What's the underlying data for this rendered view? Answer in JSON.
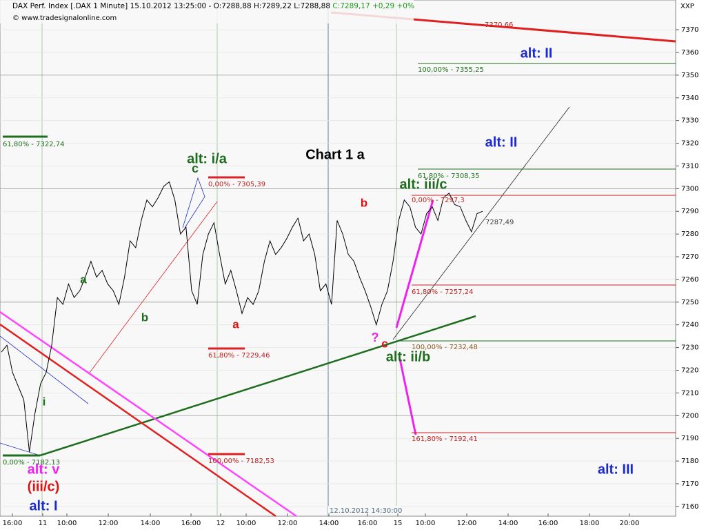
{
  "header": {
    "text": "DAX Perf. Index [.DAX  1 Minute] 15.10.2012 13:25:00 - O:7288,88 H:7289,22 L:7288,88",
    "change": "C:7289,17 +0,29 +0%",
    "source": "© www.tradesignalonline.com"
  },
  "chart_data": {
    "type": "line",
    "unit": "XXP",
    "ylim": [
      7155.7,
      7383.1
    ],
    "yticks": [
      7160,
      7170,
      7180,
      7190,
      7200,
      7210,
      7220,
      7230,
      7240,
      7250,
      7260,
      7270,
      7280,
      7290,
      7300,
      7310,
      7320,
      7330,
      7340,
      7350,
      7360,
      7370
    ],
    "grid": true,
    "x_labels": [
      "16:00",
      "11",
      "10:00",
      "12:00",
      "14:00",
      "16:00",
      "12",
      "10:00",
      "12:00",
      "14:00",
      "16:00",
      "15",
      "10:00",
      "12:00",
      "14:00",
      "16:00",
      "18:00",
      "20:00"
    ],
    "cursor_label": "12.10.2012 14:30:00",
    "series": [
      {
        "color": "#000000",
        "values": [
          7228,
          7231,
          7219,
          7213,
          7207,
          7184,
          7201,
          7214,
          7219,
          7231,
          7252,
          7249,
          7258,
          7252,
          7255,
          7261,
          7268,
          7261,
          7264,
          7258,
          7255,
          7249,
          7261,
          7277,
          7274,
          7286,
          7295,
          7292,
          7296,
          7301,
          7303,
          7295,
          7280,
          7283,
          7255,
          7249,
          7271,
          7280,
          7285,
          7271,
          7258,
          7264,
          7255,
          7245,
          7252,
          7249,
          7255,
          7268,
          7277,
          7271,
          7274,
          7278,
          7283,
          7287,
          7277,
          7280,
          7271,
          7255,
          7258,
          7249,
          7286,
          7280,
          7271,
          7268,
          7261,
          7255,
          7248,
          7240,
          7249,
          7255,
          7268,
          7286,
          7295,
          7292,
          7283,
          7280,
          7289,
          7292,
          7286,
          7296,
          7298,
          7293,
          7292,
          7286,
          7281,
          7289,
          7290
        ]
      }
    ],
    "annotations": [
      "Chart 1 a",
      "alt: II",
      "alt: II",
      "alt: III",
      "alt: I",
      "alt: i/a",
      "c",
      "alt: iii/c",
      "alt: ii/b",
      "alt: v",
      "(iii/c)",
      "a",
      "b",
      "i",
      "a",
      "b",
      "c",
      "?",
      "61,80% - 7322,74",
      "0,00% - 7182,13",
      "0,00% - 7305,39",
      "61,80% - 7229,46",
      "100,00% - 7182,53",
      "100,00% - 7355,25",
      "61,80% - 7308,35",
      "0,00% - 7297,3",
      "61,80% - 7257,24",
      "100,00% - 7232,48",
      "161,80% - 7192,41",
      "7370,66",
      "7287,49"
    ]
  }
}
